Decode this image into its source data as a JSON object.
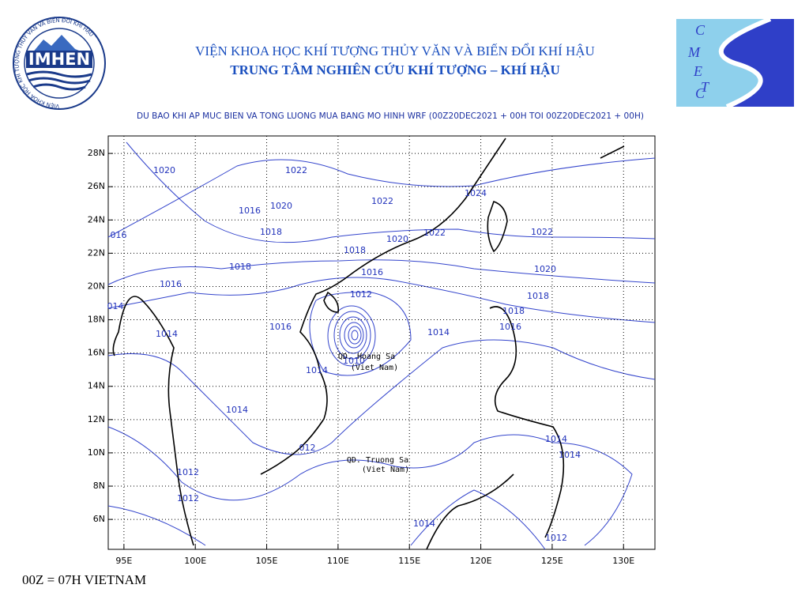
{
  "header": {
    "institute": "VIỆN KHOA HỌC KHÍ TƯỢNG THỦY VĂN VÀ BIẾN ĐỔI KHÍ HẬU",
    "center": "TRUNG TÂM NGHIÊN CỨU KHÍ TƯỢNG – KHÍ HẬU",
    "subtitle": "DU BAO KHI AP MUC BIEN VA TONG LUONG MUA BANG MO HINH WRF (00Z20DEC2021 + 00H TOI 00Z20DEC2021 + 00H)"
  },
  "logo_left": {
    "name": "IMHEN",
    "ring": "VIỆN KHOA HỌC KHÍ TƯỢNG THỦY VĂN VÀ BIẾN ĐỔI KHÍ HẬU"
  },
  "logo_right": {
    "letters": [
      "C",
      "M",
      "E",
      "T",
      "C"
    ]
  },
  "map": {
    "xlim": [
      93.9,
      132.2
    ],
    "ylim": [
      4.2,
      29.05
    ],
    "xticks": [
      {
        "value": 95,
        "label": "95E"
      },
      {
        "value": 100,
        "label": "100E"
      },
      {
        "value": 105,
        "label": "105E"
      },
      {
        "value": 110,
        "label": "110E"
      },
      {
        "value": 115,
        "label": "115E"
      },
      {
        "value": 120,
        "label": "120E"
      },
      {
        "value": 125,
        "label": "125E"
      },
      {
        "value": 130,
        "label": "130E"
      }
    ],
    "yticks": [
      {
        "value": 6,
        "label": "6N"
      },
      {
        "value": 8,
        "label": "8N"
      },
      {
        "value": 10,
        "label": "10N"
      },
      {
        "value": 12,
        "label": "12N"
      },
      {
        "value": 14,
        "label": "14N"
      },
      {
        "value": 16,
        "label": "16N"
      },
      {
        "value": 18,
        "label": "18N"
      },
      {
        "value": 20,
        "label": "20N"
      },
      {
        "value": 22,
        "label": "22N"
      },
      {
        "value": 24,
        "label": "24N"
      },
      {
        "value": 26,
        "label": "26N"
      },
      {
        "value": 28,
        "label": "28N"
      }
    ],
    "grid": true,
    "contour_labels": [
      "1020",
      "1022",
      "1016",
      "1020",
      "1022",
      "1024",
      "016",
      "1018",
      "1020",
      "1022",
      "1022",
      "1018",
      "1018",
      "1016",
      "1020",
      "1016",
      "1012",
      "1018",
      "014",
      "1018",
      "1016",
      "1016",
      "1014",
      "1014",
      "1010",
      "1014",
      "1014",
      "1014",
      "1014",
      "012",
      "1012",
      "1012",
      "1014",
      "1012"
    ],
    "places": [
      "QD. Hoang Sa",
      "(Viet Nam)",
      "QD. Truong Sa",
      "(Viet Nam)"
    ]
  },
  "footer": "00Z = 07H VIETNAM"
}
